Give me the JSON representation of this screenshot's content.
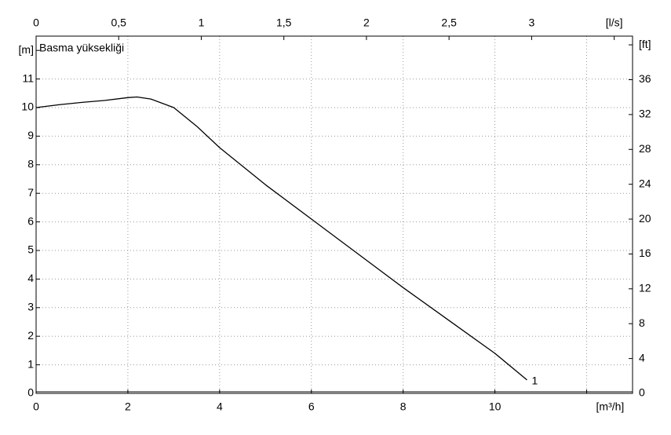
{
  "chart_data": {
    "type": "line",
    "title": "Basma yüksekliği",
    "x": [
      0,
      0.5,
      1,
      1.5,
      2,
      2.2,
      2.5,
      3,
      3.5,
      4,
      5,
      6,
      7,
      8,
      9,
      10,
      10.7
    ],
    "series": [
      {
        "name": "1",
        "color": "#000000",
        "values": [
          10.0,
          10.1,
          10.18,
          10.25,
          10.35,
          10.37,
          10.3,
          10.0,
          9.35,
          8.6,
          7.3,
          6.1,
          4.9,
          3.7,
          2.55,
          1.4,
          0.47
        ]
      }
    ],
    "xlim": [
      0,
      13
    ],
    "xticks": [
      0,
      2,
      4,
      6,
      8,
      10,
      {
        "value": 12,
        "label": "[m³/h]"
      }
    ],
    "x2lim": [
      0,
      3.611
    ],
    "x2ticks": [
      0,
      {
        "value": 0.5,
        "label": "0,5"
      },
      1,
      {
        "value": 1.5,
        "label": "1,5"
      },
      2,
      {
        "value": 2.5,
        "label": "2,5"
      },
      3,
      {
        "value": 3.5,
        "label": "[l/s]"
      }
    ],
    "ylim": [
      0,
      12.5
    ],
    "yticks": [
      0,
      1,
      2,
      3,
      4,
      5,
      6,
      7,
      8,
      9,
      10,
      11,
      {
        "value": 12,
        "label": "[m]"
      }
    ],
    "y2lim": [
      0,
      41.0
    ],
    "y2ticks": [
      0,
      4,
      8,
      12,
      16,
      20,
      24,
      28,
      32,
      36,
      {
        "value": 40,
        "label": "[ft]"
      }
    ],
    "grid": true
  }
}
